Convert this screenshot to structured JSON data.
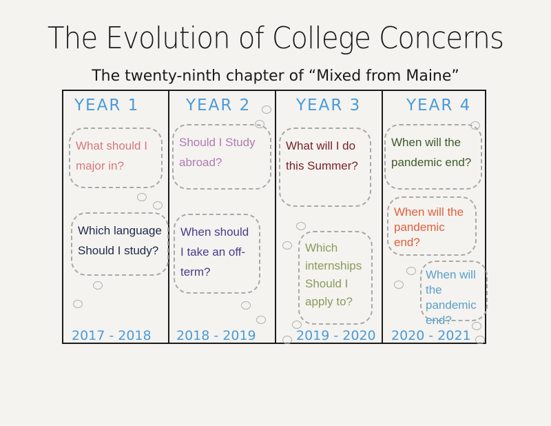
{
  "title": "The Evolution of College Concerns",
  "subtitle": "The twenty-ninth chapter of “Mixed from Maine”",
  "columns": [
    {
      "heading": "YEAR 1",
      "years": "2017 - 2018",
      "concerns": [
        {
          "text": "What should I major in?",
          "color": "#d9777a"
        },
        {
          "text": "Which language Should I study?",
          "color": "#1c2a4a"
        }
      ]
    },
    {
      "heading": "YEAR 2",
      "years": "2018 - 2019",
      "concerns": [
        {
          "text": "Should I Study abroad?",
          "color": "#b07bb0"
        },
        {
          "text": "When should I take an off-term?",
          "color": "#4a3a8a"
        }
      ]
    },
    {
      "heading": "YEAR 3",
      "years": "2019 - 2020",
      "concerns": [
        {
          "text": "What will I do this Summer?",
          "color": "#7a1f22"
        },
        {
          "text": "Which internships Should I apply to?",
          "color": "#8a9a5a"
        }
      ]
    },
    {
      "heading": "YEAR 4",
      "years": "2020 - 2021",
      "concerns": [
        {
          "text": "When will the pandemic end?",
          "color": "#3d5a28"
        },
        {
          "text": "When will the pandemic end?",
          "color": "#e0603a"
        },
        {
          "text": "When will the pandemic end?",
          "color": "#5aa0c8"
        }
      ]
    }
  ]
}
